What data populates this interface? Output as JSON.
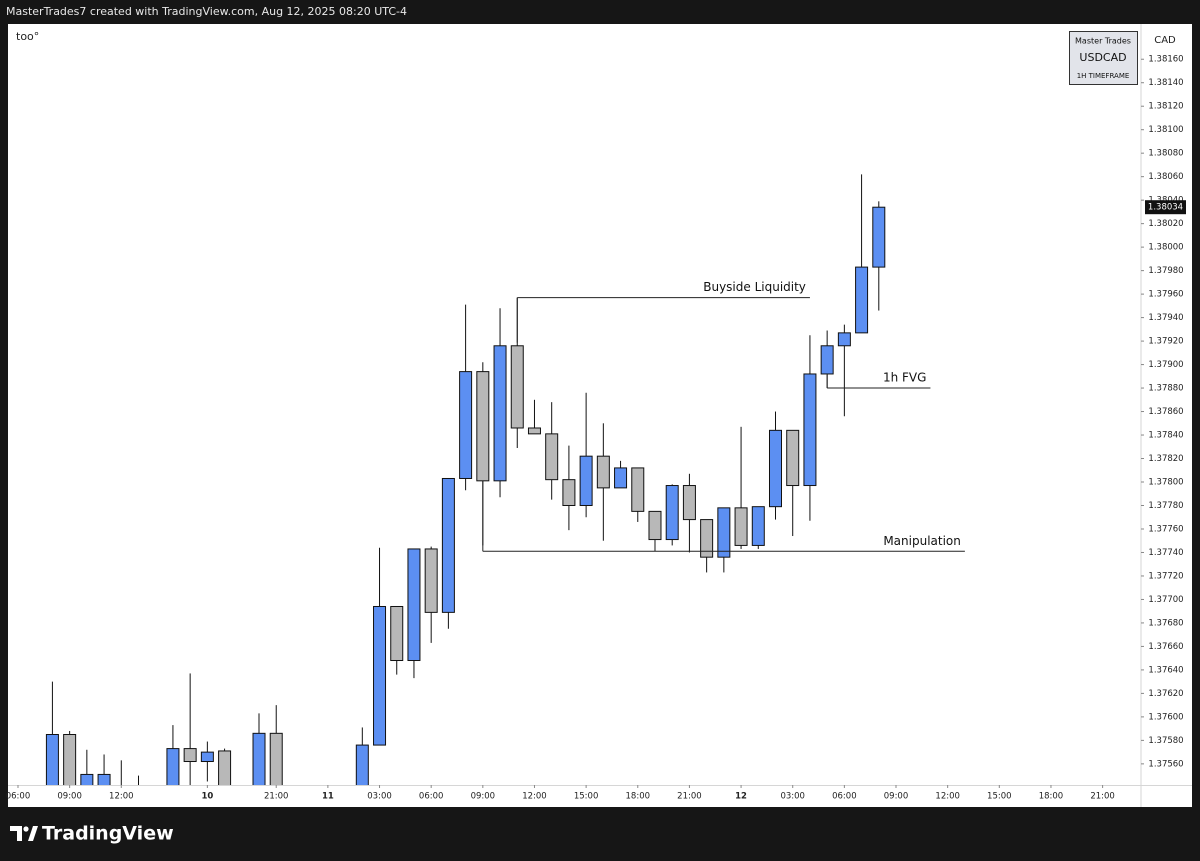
{
  "header": "MasterTrades7 created with TradingView.com, Aug 12, 2025 08:20 UTC-4",
  "footer": "TradingView",
  "chart_data": {
    "type": "candlestick",
    "symbol_label": "too°",
    "currency": "CAD",
    "watermark": [
      "Master Trades",
      "USDCAD",
      "1H TIMEFRAME"
    ],
    "up_color": "#5c8ff2",
    "down_color": "#b8b8b8",
    "x": [
      2,
      3,
      4,
      5,
      6,
      7,
      9,
      10,
      11,
      12,
      14,
      15,
      20,
      21,
      22,
      23,
      24,
      25,
      26,
      27,
      28,
      29,
      30,
      31,
      32,
      33,
      34,
      35,
      36,
      37,
      38,
      39,
      40,
      41,
      42,
      43,
      44,
      45,
      46,
      47,
      48,
      49,
      50
    ],
    "open": [
      1.37535,
      1.37585,
      1.3753,
      1.37535,
      1.3753,
      1.37525,
      1.3753,
      1.37573,
      1.37562,
      1.37571,
      1.3753,
      1.37586,
      1.3753,
      1.37576,
      1.37694,
      1.37648,
      1.37743,
      1.37689,
      1.37803,
      1.37894,
      1.37801,
      1.37916,
      1.37846,
      1.37841,
      1.37802,
      1.3778,
      1.37822,
      1.37795,
      1.37812,
      1.37775,
      1.37751,
      1.37797,
      1.37768,
      1.37736,
      1.37778,
      1.37746,
      1.37779,
      1.37844,
      1.37797,
      1.37892,
      1.37916,
      1.37927,
      1.37983
    ],
    "high": [
      1.3763,
      1.37588,
      1.37572,
      1.37568,
      1.37563,
      1.3755,
      1.37593,
      1.37637,
      1.37579,
      1.37573,
      1.37603,
      1.3761,
      1.37591,
      1.37744,
      1.37694,
      1.37743,
      1.37745,
      1.37803,
      1.37951,
      1.37902,
      1.37948,
      1.37957,
      1.3787,
      1.37868,
      1.37831,
      1.37876,
      1.3785,
      1.37818,
      1.37812,
      1.37775,
      1.37798,
      1.37807,
      1.37768,
      1.37778,
      1.37847,
      1.37779,
      1.3786,
      1.37844,
      1.37925,
      1.37929,
      1.37934,
      1.38062,
      1.38039
    ],
    "low": [
      1.3752,
      1.3752,
      1.3752,
      1.3752,
      1.3751,
      1.3751,
      1.3752,
      1.37535,
      1.37545,
      1.3752,
      1.3752,
      1.3752,
      1.3752,
      1.37576,
      1.37636,
      1.37633,
      1.37663,
      1.37675,
      1.37793,
      1.37746,
      1.37787,
      1.37829,
      1.37841,
      1.37785,
      1.37759,
      1.3777,
      1.3775,
      1.37795,
      1.37766,
      1.37741,
      1.37746,
      1.3774,
      1.37723,
      1.37723,
      1.37743,
      1.37743,
      1.37768,
      1.37754,
      1.37767,
      1.3788,
      1.37856,
      1.37927,
      1.37946
    ],
    "close": [
      1.37585,
      1.3753,
      1.37551,
      1.37551,
      1.3752,
      1.3752,
      1.37573,
      1.37562,
      1.3757,
      1.3753,
      1.37586,
      1.3753,
      1.37576,
      1.37694,
      1.37648,
      1.37743,
      1.37689,
      1.37803,
      1.37894,
      1.37801,
      1.37916,
      1.37846,
      1.37841,
      1.37802,
      1.3778,
      1.37822,
      1.37795,
      1.37812,
      1.37775,
      1.37751,
      1.37797,
      1.37768,
      1.37736,
      1.37778,
      1.37746,
      1.37779,
      1.37844,
      1.37797,
      1.37892,
      1.37916,
      1.37927,
      1.37983,
      1.38034
    ],
    "last_price": 1.38034,
    "xlim": [
      -0.58,
      65.23
    ],
    "xticks": [
      {
        "value": 0,
        "label": "06:00"
      },
      {
        "value": 3,
        "label": "09:00"
      },
      {
        "value": 6,
        "label": "12:00"
      },
      {
        "value": 11,
        "label": "10"
      },
      {
        "value": 15,
        "label": "21:00"
      },
      {
        "value": 18,
        "label": "11"
      },
      {
        "value": 21,
        "label": "03:00"
      },
      {
        "value": 24,
        "label": "06:00"
      },
      {
        "value": 27,
        "label": "09:00"
      },
      {
        "value": 30,
        "label": "12:00"
      },
      {
        "value": 33,
        "label": "15:00"
      },
      {
        "value": 36,
        "label": "18:00"
      },
      {
        "value": 39,
        "label": "21:00"
      },
      {
        "value": 42,
        "label": "12"
      },
      {
        "value": 45,
        "label": "03:00"
      },
      {
        "value": 48,
        "label": "06:00"
      },
      {
        "value": 51,
        "label": "09:00"
      },
      {
        "value": 54,
        "label": "12:00"
      },
      {
        "value": 57,
        "label": "15:00"
      },
      {
        "value": 60,
        "label": "18:00"
      },
      {
        "value": 63,
        "label": "21:00"
      }
    ],
    "ylim": [
      1.37542,
      1.3819
    ],
    "yticks": [
      {
        "value": 1.3756,
        "label": "1.37560"
      },
      {
        "value": 1.3758,
        "label": "1.37580"
      },
      {
        "value": 1.376,
        "label": "1.37600"
      },
      {
        "value": 1.3762,
        "label": "1.37620"
      },
      {
        "value": 1.3764,
        "label": "1.37640"
      },
      {
        "value": 1.3766,
        "label": "1.37660"
      },
      {
        "value": 1.3768,
        "label": "1.37680"
      },
      {
        "value": 1.377,
        "label": "1.37700"
      },
      {
        "value": 1.3772,
        "label": "1.37720"
      },
      {
        "value": 1.3774,
        "label": "1.37740"
      },
      {
        "value": 1.3776,
        "label": "1.37760"
      },
      {
        "value": 1.3778,
        "label": "1.37780"
      },
      {
        "value": 1.378,
        "label": "1.37800"
      },
      {
        "value": 1.3782,
        "label": "1.37820"
      },
      {
        "value": 1.3784,
        "label": "1.37840"
      },
      {
        "value": 1.3786,
        "label": "1.37860"
      },
      {
        "value": 1.3788,
        "label": "1.37880"
      },
      {
        "value": 1.379,
        "label": "1.37900"
      },
      {
        "value": 1.3792,
        "label": "1.37920"
      },
      {
        "value": 1.3794,
        "label": "1.37940"
      },
      {
        "value": 1.3796,
        "label": "1.37960"
      },
      {
        "value": 1.3798,
        "label": "1.37980"
      },
      {
        "value": 1.38,
        "label": "1.38000"
      },
      {
        "value": 1.3802,
        "label": "1.38020"
      },
      {
        "value": 1.3804,
        "label": "1.38040"
      },
      {
        "value": 1.3806,
        "label": "1.38060"
      },
      {
        "value": 1.3808,
        "label": "1.38080"
      },
      {
        "value": 1.381,
        "label": "1.38100"
      },
      {
        "value": 1.3812,
        "label": "1.38120"
      },
      {
        "value": 1.3814,
        "label": "1.38140"
      },
      {
        "value": 1.3816,
        "label": "1.38160"
      }
    ],
    "annotations": [
      {
        "text": "Buyside Liquidity",
        "level": 1.37957,
        "from": 29,
        "to": 46
      },
      {
        "text": "1h FVG",
        "level": 1.3788,
        "from": 47,
        "to": 53
      },
      {
        "text": "Manipulation",
        "level": 1.37741,
        "from": 27,
        "to": 55
      }
    ]
  }
}
